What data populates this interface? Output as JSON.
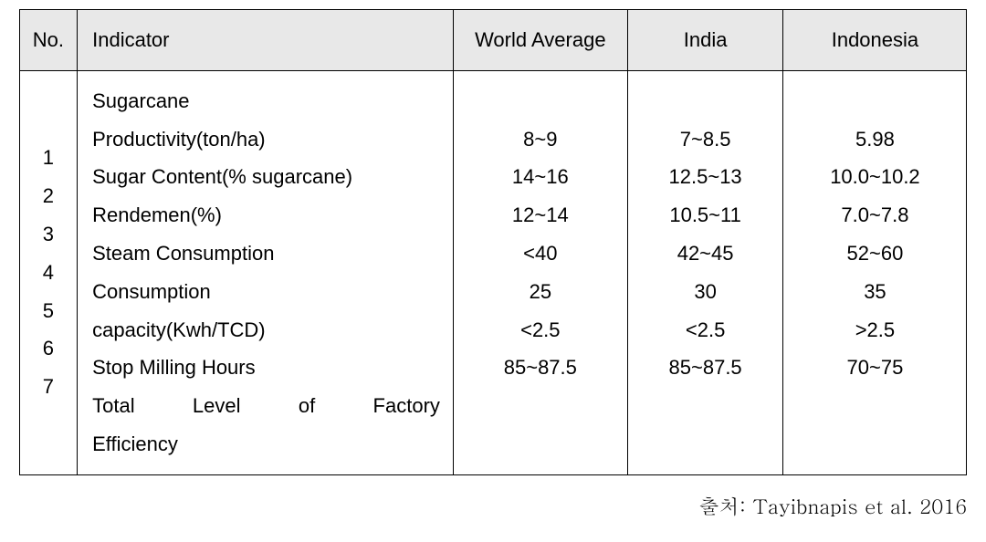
{
  "header": {
    "no": "No.",
    "indicator": "Indicator",
    "world": "World Average",
    "india": "India",
    "indonesia": "Indonesia"
  },
  "numbers": {
    "list": "1\n2\n3\n4\n5\n6\n7"
  },
  "indicators": {
    "line1": "Sugarcane",
    "line2": "Productivity(ton/ha)",
    "line3": "Sugar Content(% sugarcane)",
    "line4": "Rendemen(%)",
    "line5": "Steam Consumption",
    "line6": "Consumption",
    "line7": "capacity(Kwh/TCD)",
    "line8": "Stop Milling Hours",
    "line9": "Total  Level  of  Factory",
    "line10": "Efficiency"
  },
  "values": {
    "world": "\n8~9\n14~16\n12~14\n<40\n25\n<2.5\n85~87.5",
    "india": "\n7~8.5\n12.5~13\n10.5~11\n42~45\n30\n<2.5\n85~87.5",
    "indonesia": "\n5.98\n10.0~10.2\n7.0~7.8\n52~60\n35\n>2.5\n70~75"
  },
  "source": "출처: Tayibnapis et al. 2016"
}
